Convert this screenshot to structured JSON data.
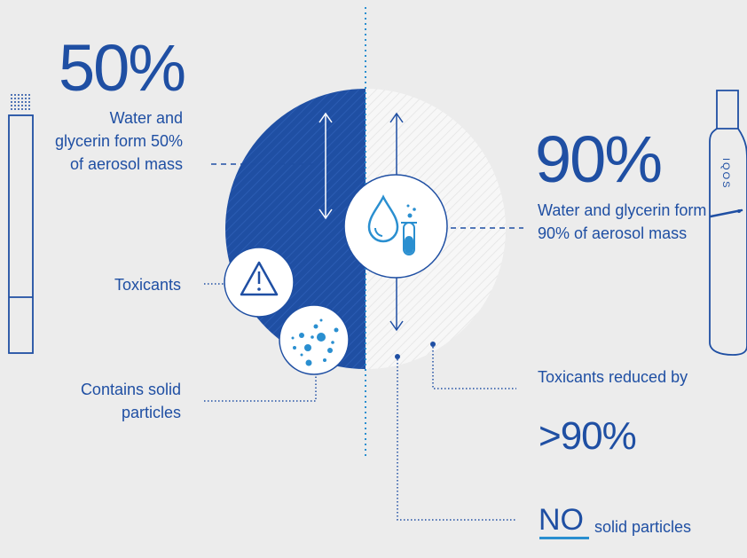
{
  "conventional": {
    "percent": "50%",
    "description": "Water and glycerin form 50% of aerosol mass",
    "toxicants_label": "Toxicants",
    "particles_label": "Contains solid particles"
  },
  "heated": {
    "percent": "90%",
    "description": "Water and glycerin form 90% of aerosol mass",
    "toxicants_label": "Toxicants reduced by",
    "toxicants_reduction": ">90%",
    "no_word": "NO",
    "no_particles_rest": "solid particles",
    "device_brand": "IQOS"
  },
  "icons": [
    "water-drop-icon",
    "test-tube-icon",
    "warning-icon",
    "particles-icon",
    "cigarette-icon",
    "iqos-device-icon"
  ],
  "colors": {
    "dark_blue": "#1f4fa3",
    "light_blue": "#2a8fd0",
    "background": "#ececec",
    "light_half": "#f5f5f5"
  }
}
